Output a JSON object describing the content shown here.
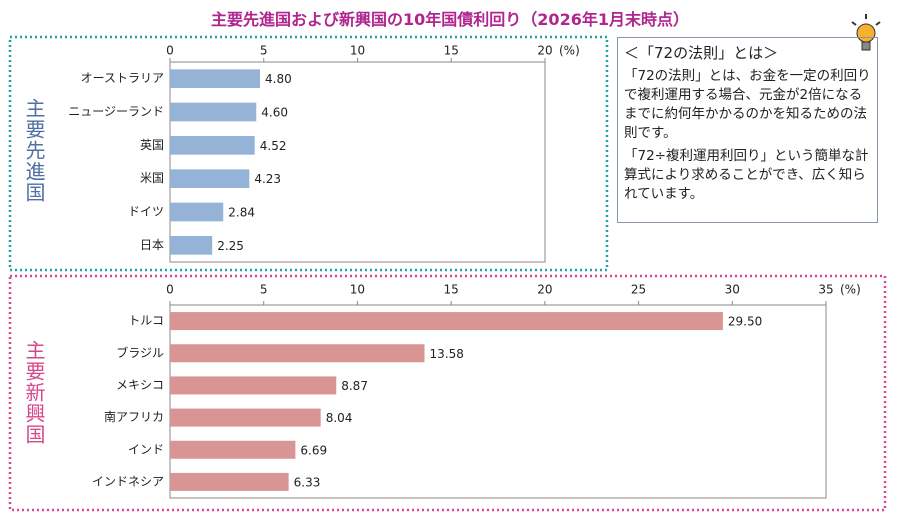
{
  "title": "主要先進国および新興国の10年国債利回り（2026年1月末時点）",
  "note": {
    "heading": "＜「72の法則」とは＞",
    "paragraphs": [
      "「72の法則」とは、お金を一定の利回りで複利運用する場合、元金が2倍になるまでに約何年かかるのかを知るための法則です。",
      "「72÷複利運用利回り」という簡単な計算式により求めることができ、広く知られています。"
    ]
  },
  "chart_data": [
    {
      "type": "hbar",
      "group_label": "主要先進国",
      "x_unit": "(%)",
      "categories": [
        "オーストラリア",
        "ニュージーランド",
        "英国",
        "米国",
        "ドイツ",
        "日本"
      ],
      "values": [
        4.8,
        4.6,
        4.52,
        4.23,
        2.84,
        2.25
      ],
      "value_labels": [
        "4.80",
        "4.60",
        "4.52",
        "4.23",
        "2.84",
        "2.25"
      ],
      "color": "#95b3d7",
      "xlim": [
        0,
        20
      ],
      "xticks": [
        0,
        5,
        10,
        15,
        20
      ],
      "grid": false
    },
    {
      "type": "hbar",
      "group_label": "主要新興国",
      "x_unit": "(%)",
      "categories": [
        "トルコ",
        "ブラジル",
        "メキシコ",
        "南アフリカ",
        "インド",
        "インドネシア"
      ],
      "values": [
        29.5,
        13.58,
        8.87,
        8.04,
        6.69,
        6.33
      ],
      "value_labels": [
        "29.50",
        "13.58",
        "8.87",
        "8.04",
        "6.69",
        "6.33"
      ],
      "color": "#d99594",
      "xlim": [
        0,
        35
      ],
      "xticks": [
        0,
        5,
        10,
        15,
        20,
        25,
        30,
        35
      ],
      "grid": false
    }
  ]
}
